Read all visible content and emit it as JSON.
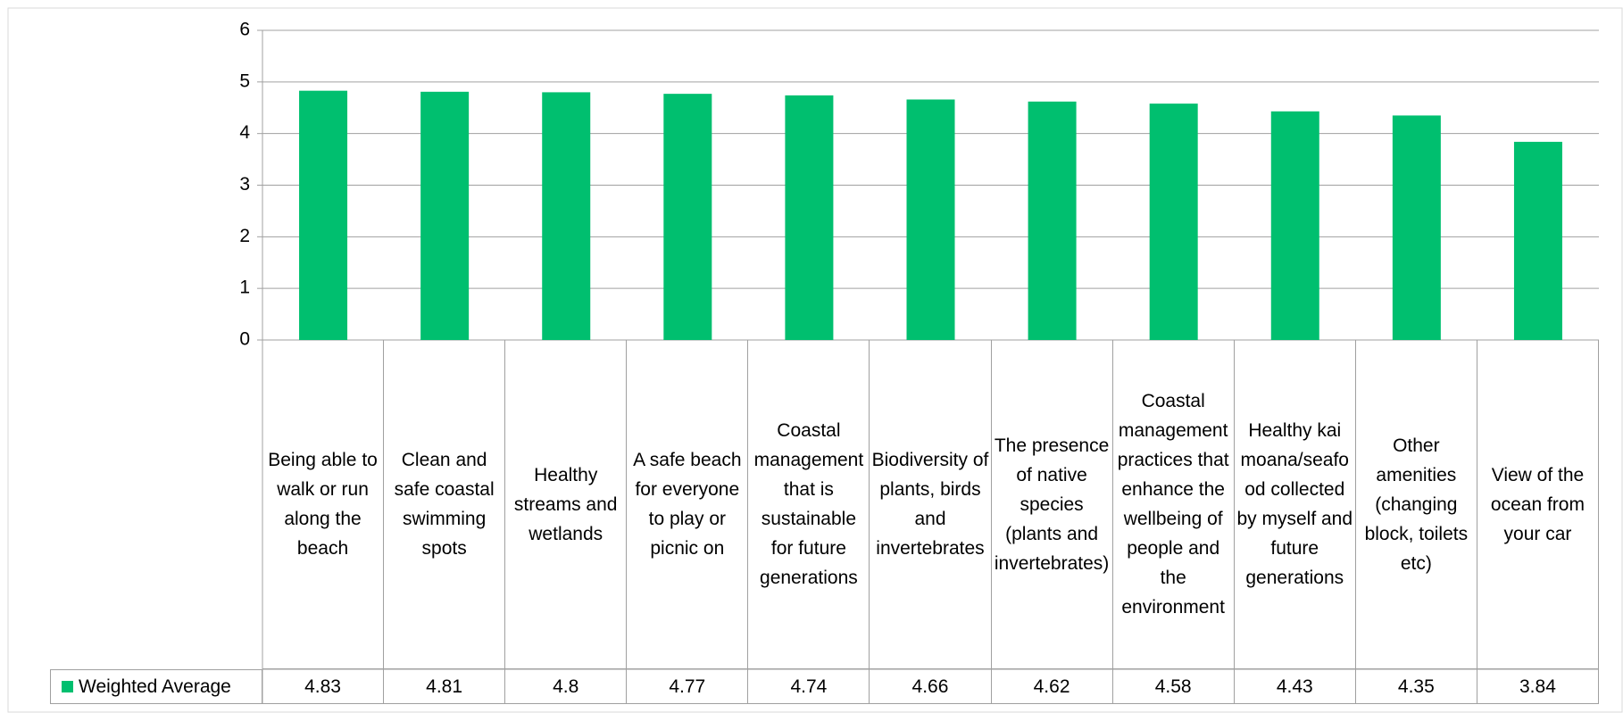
{
  "chart_data": {
    "type": "bar",
    "categories": [
      "Being able to walk or run along the beach",
      "Clean and safe coastal swimming spots",
      "Healthy streams and wetlands",
      "A safe beach for everyone to play or picnic on",
      "Coastal management that is sustainable for future generations",
      "Biodiversity of plants, birds and invertebrates",
      "The presence of native species (plants and invertebrates)",
      "Coastal management practices that enhance the wellbeing of people and the environment",
      "Healthy kai moana/seafood collected by myself and future generations",
      "Other amenities (changing block, toilets etc)",
      "View of the ocean from your car"
    ],
    "series": [
      {
        "name": "Weighted Average",
        "color": "#00bf6f",
        "values": [
          4.83,
          4.81,
          4.8,
          4.77,
          4.74,
          4.66,
          4.62,
          4.58,
          4.43,
          4.35,
          3.84
        ]
      }
    ],
    "ylim": [
      0,
      6
    ],
    "yticks": [
      0,
      1,
      2,
      3,
      4,
      5,
      6
    ],
    "grid": true,
    "legend": "data-table"
  }
}
